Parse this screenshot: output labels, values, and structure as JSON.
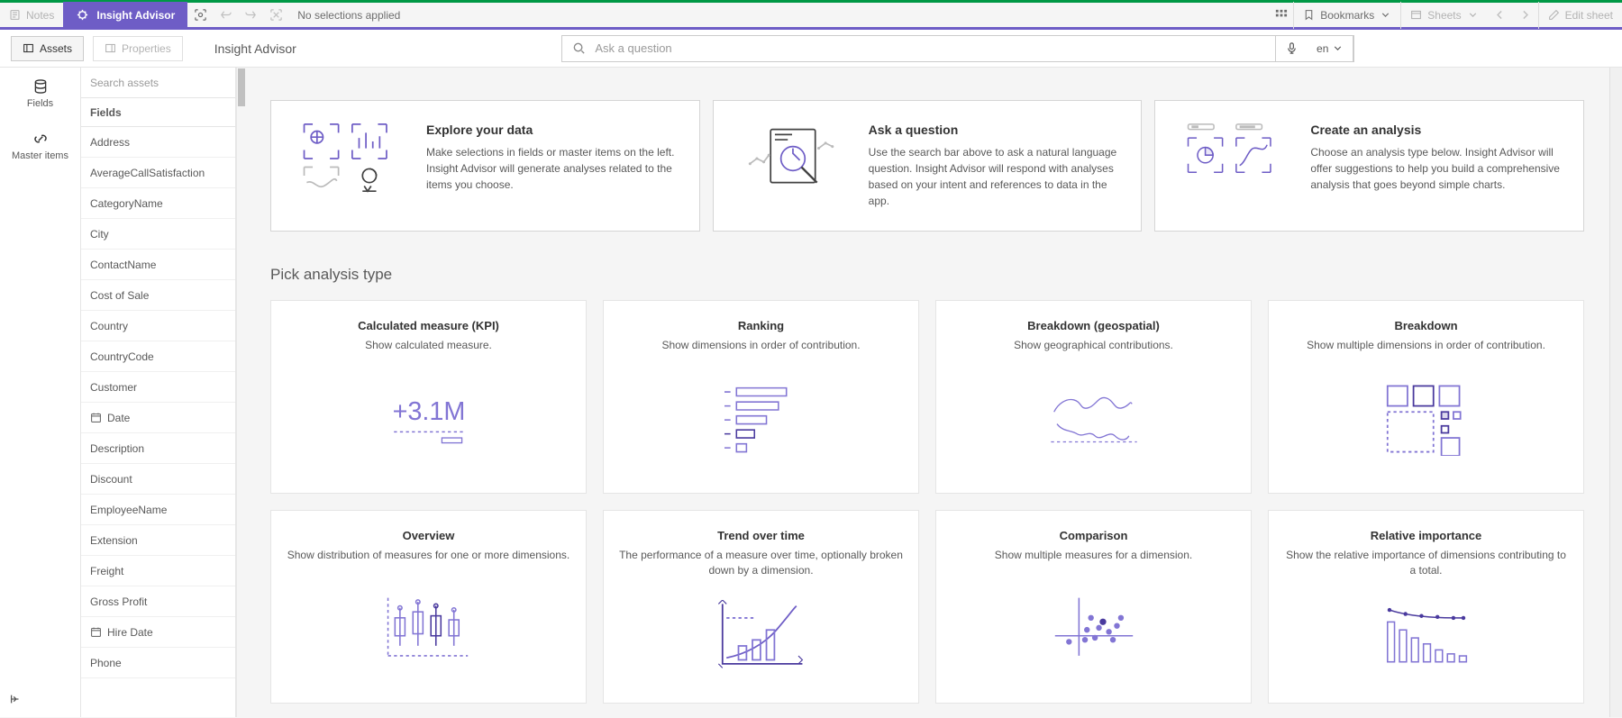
{
  "toolbar": {
    "notes": "Notes",
    "insight_advisor": "Insight Advisor",
    "no_selections": "No selections applied",
    "bookmarks": "Bookmarks",
    "sheets": "Sheets",
    "edit_sheet": "Edit sheet"
  },
  "subheader": {
    "assets": "Assets",
    "properties": "Properties",
    "title": "Insight Advisor",
    "search_placeholder": "Ask a question",
    "lang": "en"
  },
  "rail": {
    "fields": "Fields",
    "master_items": "Master items"
  },
  "fields_panel": {
    "search_placeholder": "Search assets",
    "header": "Fields",
    "items": [
      {
        "label": "Address",
        "icon": null
      },
      {
        "label": "AverageCallSatisfaction",
        "icon": null
      },
      {
        "label": "CategoryName",
        "icon": null
      },
      {
        "label": "City",
        "icon": null
      },
      {
        "label": "ContactName",
        "icon": null
      },
      {
        "label": "Cost of Sale",
        "icon": null
      },
      {
        "label": "Country",
        "icon": null
      },
      {
        "label": "CountryCode",
        "icon": null
      },
      {
        "label": "Customer",
        "icon": null
      },
      {
        "label": "Date",
        "icon": "calendar"
      },
      {
        "label": "Description",
        "icon": null
      },
      {
        "label": "Discount",
        "icon": null
      },
      {
        "label": "EmployeeName",
        "icon": null
      },
      {
        "label": "Extension",
        "icon": null
      },
      {
        "label": "Freight",
        "icon": null
      },
      {
        "label": "Gross Profit",
        "icon": null
      },
      {
        "label": "Hire Date",
        "icon": "calendar"
      },
      {
        "label": "Phone",
        "icon": null
      }
    ]
  },
  "intro": [
    {
      "title": "Explore your data",
      "desc": "Make selections in fields or master items on the left. Insight Advisor will generate analyses related to the items you choose."
    },
    {
      "title": "Ask a question",
      "desc": "Use the search bar above to ask a natural language question. Insight Advisor will respond with analyses based on your intent and references to data in the app."
    },
    {
      "title": "Create an analysis",
      "desc": "Choose an analysis type below. Insight Advisor will offer suggestions to help you build a comprehensive analysis that goes beyond simple charts."
    }
  ],
  "section_title": "Pick analysis type",
  "analyses": [
    {
      "title": "Calculated measure (KPI)",
      "desc": "Show calculated measure."
    },
    {
      "title": "Ranking",
      "desc": "Show dimensions in order of contribution."
    },
    {
      "title": "Breakdown (geospatial)",
      "desc": "Show geographical contributions."
    },
    {
      "title": "Breakdown",
      "desc": "Show multiple dimensions in order of contribution."
    },
    {
      "title": "Overview",
      "desc": "Show distribution of measures for one or more dimensions."
    },
    {
      "title": "Trend over time",
      "desc": "The performance of a measure over time, optionally broken down by a dimension."
    },
    {
      "title": "Comparison",
      "desc": "Show multiple measures for a dimension."
    },
    {
      "title": "Relative importance",
      "desc": "Show the relative importance of dimensions contributing to a total."
    }
  ],
  "colors": {
    "accent": "#6e5dc6",
    "accent_dark": "#4a3a9e",
    "text_muted": "#595959",
    "border": "#d5d5d5"
  }
}
